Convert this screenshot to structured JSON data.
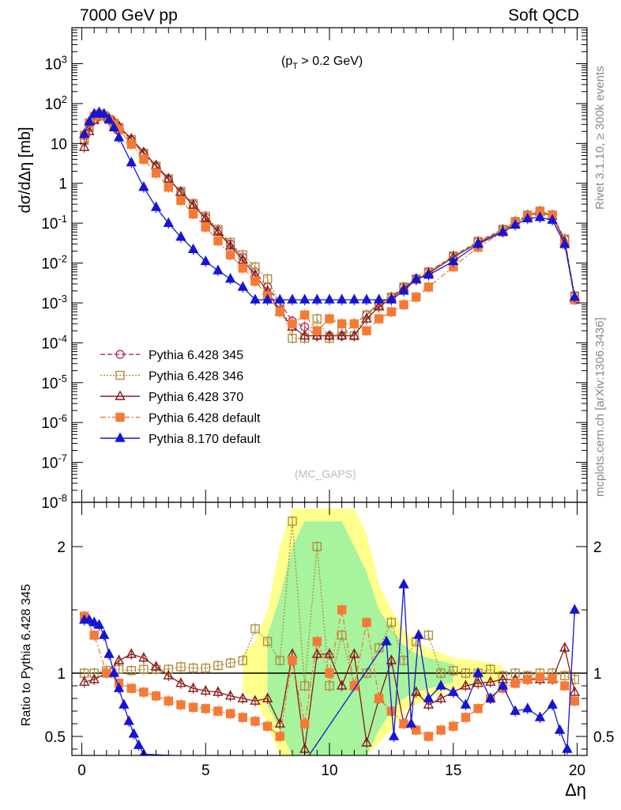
{
  "header": {
    "left_title": "7000 GeV pp",
    "right_title": "Soft QCD"
  },
  "side_labels": {
    "rivet": "Rivet 3.1.10, ≥ 300k events",
    "mcplots": "mcplots.cern.ch [arXiv:1306.3436]"
  },
  "watermark": "(MC_GAPS)",
  "chart_data": [
    {
      "type": "line",
      "role": "main",
      "annotation": "(p_T > 0.2 GeV)",
      "ylabel": "dσ/dΔη [mb]",
      "yscale": "log",
      "ylim": [
        1e-08,
        8000
      ],
      "xlim": [
        -0.4,
        20.4
      ],
      "y_tick_labels": [
        "10^{-8}",
        "10^{-7}",
        "10^{-6}",
        "10^{-5}",
        "10^{-4}",
        "10^{-3}",
        "10^{-2}",
        "10^{-1}",
        "1",
        "10",
        "10^{2}",
        "10^{3}"
      ],
      "legend_position": "lower-left",
      "grid": false,
      "series": [
        {
          "name": "Pythia 6.428 345",
          "color": "#b2385d",
          "marker": "open-circle",
          "line": "dashed",
          "x": [
            0.1,
            0.3,
            0.5,
            0.7,
            0.9,
            1.1,
            1.3,
            1.5,
            2.0,
            2.5,
            3.0,
            3.5,
            4.0,
            4.5,
            5.0,
            5.5,
            6.0,
            6.5,
            7.0,
            7.5,
            8.0,
            8.5,
            9.0,
            9.5,
            10.0,
            10.5,
            11.0,
            11.5,
            12.0,
            12.5,
            13.0,
            13.5,
            14.0,
            15.0,
            16.0,
            17.0,
            17.5,
            18.0,
            18.5,
            19.0,
            19.5,
            19.9
          ],
          "y": [
            12,
            25,
            40,
            50,
            48,
            40,
            32,
            25,
            12,
            5.5,
            2.6,
            1.25,
            0.6,
            0.3,
            0.14,
            0.065,
            0.03,
            0.014,
            0.006,
            0.0025,
            0.001,
            0.00035,
            0.00025,
            0.00015,
            0.00015,
            0.00015,
            0.0003,
            0.0005,
            0.001,
            0.0014,
            0.0025,
            0.004,
            0.006,
            0.015,
            0.035,
            0.07,
            0.11,
            0.16,
            0.2,
            0.16,
            0.04,
            0.0015
          ]
        },
        {
          "name": "Pythia 6.428 346",
          "color": "#b08d3c",
          "marker": "open-square",
          "line": "dotted",
          "x": [
            0.1,
            0.3,
            0.5,
            0.7,
            0.9,
            1.1,
            1.3,
            1.5,
            2.0,
            2.5,
            3.0,
            3.5,
            4.0,
            4.5,
            5.0,
            5.5,
            6.0,
            6.5,
            7.0,
            7.5,
            8.0,
            8.5,
            9.0,
            9.5,
            10.0,
            10.5,
            11.0,
            11.5,
            12.0,
            12.5,
            13.0,
            13.5,
            14.0,
            15.0,
            16.0,
            17.0,
            17.5,
            18.0,
            18.5,
            19.0,
            19.5,
            19.9
          ],
          "y": [
            12,
            25,
            40,
            50,
            48,
            40,
            32,
            25,
            12.5,
            5.7,
            2.7,
            1.3,
            0.63,
            0.31,
            0.15,
            0.07,
            0.033,
            0.016,
            0.008,
            0.004,
            0.0009,
            0.00013,
            0.00013,
            0.0004,
            0.00013,
            0.0002,
            0.00015,
            0.0005,
            0.0009,
            0.0014,
            0.0025,
            0.004,
            0.006,
            0.015,
            0.035,
            0.07,
            0.11,
            0.16,
            0.2,
            0.16,
            0.04,
            0.0015
          ]
        },
        {
          "name": "Pythia 6.428 370",
          "color": "#8b1a1a",
          "marker": "open-triangle",
          "line": "solid",
          "x": [
            0.1,
            0.3,
            0.5,
            0.7,
            0.9,
            1.1,
            1.3,
            1.5,
            2.0,
            2.5,
            3.0,
            3.5,
            4.0,
            4.5,
            5.0,
            5.5,
            6.0,
            6.5,
            7.0,
            7.5,
            8.0,
            8.5,
            9.0,
            9.5,
            10.0,
            10.5,
            11.0,
            11.5,
            12.0,
            12.5,
            13.0,
            13.5,
            14.0,
            15.0,
            16.0,
            17.0,
            17.5,
            18.0,
            18.5,
            19.0,
            19.5,
            19.9
          ],
          "y": [
            8,
            20,
            38,
            50,
            50,
            43,
            35,
            27,
            13,
            6,
            2.8,
            1.3,
            0.6,
            0.28,
            0.13,
            0.06,
            0.027,
            0.012,
            0.005,
            0.002,
            0.0006,
            0.00025,
            0.00015,
            0.00015,
            0.00015,
            0.00015,
            0.00015,
            0.0004,
            0.0008,
            0.0013,
            0.0023,
            0.0038,
            0.0055,
            0.014,
            0.032,
            0.065,
            0.1,
            0.15,
            0.19,
            0.15,
            0.035,
            0.0013
          ]
        },
        {
          "name": "Pythia 6.428 default",
          "color": "#f47a36",
          "marker": "filled-square",
          "line": "dashdot",
          "x": [
            0.1,
            0.3,
            0.5,
            0.7,
            0.9,
            1.1,
            1.3,
            1.5,
            2.0,
            2.5,
            3.0,
            3.5,
            4.0,
            4.5,
            5.0,
            5.5,
            6.0,
            6.5,
            7.0,
            7.5,
            8.0,
            8.5,
            9.0,
            9.5,
            10.0,
            10.5,
            11.0,
            11.5,
            12.0,
            12.5,
            13.0,
            13.5,
            14.0,
            15.0,
            16.0,
            17.0,
            17.5,
            18.0,
            18.5,
            19.0,
            19.5,
            19.9
          ],
          "y": [
            16,
            33,
            48,
            55,
            50,
            40,
            30,
            22,
            9.5,
            4.0,
            1.8,
            0.8,
            0.37,
            0.17,
            0.08,
            0.036,
            0.016,
            0.0075,
            0.0035,
            0.0015,
            0.0006,
            0.0003,
            0.0005,
            0.0002,
            0.0004,
            0.0003,
            0.0003,
            0.0002,
            0.0004,
            0.0006,
            0.0009,
            0.0014,
            0.0025,
            0.008,
            0.025,
            0.06,
            0.1,
            0.15,
            0.19,
            0.16,
            0.03,
            0.0012
          ]
        },
        {
          "name": "Pythia 8.170 default",
          "color": "#1515d6",
          "marker": "filled-triangle",
          "line": "solid",
          "x": [
            0.1,
            0.3,
            0.5,
            0.7,
            0.9,
            1.1,
            1.3,
            1.5,
            2.0,
            2.5,
            3.0,
            3.5,
            4.0,
            4.5,
            5.0,
            5.5,
            6.0,
            6.5,
            7.0,
            7.5,
            8.0,
            8.5,
            9.0,
            9.5,
            10.0,
            10.5,
            11.0,
            11.5,
            12.0,
            12.5,
            13.0,
            13.5,
            14.0,
            15.0,
            16.0,
            17.0,
            17.5,
            18.0,
            18.5,
            19.0,
            19.5,
            19.9
          ],
          "y": [
            17,
            35,
            55,
            60,
            55,
            40,
            25,
            14,
            3.3,
            0.8,
            0.25,
            0.1,
            0.045,
            0.022,
            0.011,
            0.0065,
            0.004,
            0.0025,
            0.0012,
            0.0012,
            0.0012,
            0.0012,
            0.0012,
            0.0012,
            0.0012,
            0.0012,
            0.0012,
            0.0012,
            0.0012,
            0.0012,
            0.002,
            0.004,
            0.005,
            0.011,
            0.03,
            0.06,
            0.09,
            0.13,
            0.14,
            0.12,
            0.03,
            0.0014
          ]
        }
      ]
    },
    {
      "type": "line",
      "role": "ratio",
      "ylabel": "Ratio to Pythia 6.428 345",
      "xlabel": "Δη",
      "ylim": [
        0.35,
        2.35
      ],
      "xlim": [
        -0.4,
        20.4
      ],
      "x_tick_labels": [
        "0",
        "5",
        "10",
        "15",
        "20"
      ],
      "y_tick_labels": [
        "0.5",
        "1",
        "2"
      ],
      "reference_line": 1,
      "bands": [
        {
          "color": "#ffff80",
          "x": [
            6.5,
            7.0,
            7.5,
            8.0,
            8.5,
            9.0,
            9.5,
            10.0,
            10.5,
            11.0,
            11.5,
            12.0,
            12.5,
            13.0,
            13.5,
            14.0,
            15.0,
            16.0,
            17.0
          ],
          "lo": [
            0.85,
            0.78,
            0.6,
            0.35,
            0.35,
            0.35,
            0.35,
            0.35,
            0.35,
            0.35,
            0.35,
            0.45,
            0.55,
            0.7,
            0.75,
            0.8,
            0.88,
            0.9,
            0.94
          ],
          "hi": [
            1.15,
            1.25,
            1.5,
            2.0,
            2.3,
            2.3,
            2.3,
            2.3,
            2.3,
            2.3,
            2.1,
            1.7,
            1.5,
            1.35,
            1.25,
            1.2,
            1.12,
            1.1,
            1.06
          ]
        },
        {
          "color": "#9ef29e",
          "x": [
            7.5,
            8.0,
            8.5,
            9.0,
            9.5,
            10.0,
            10.5,
            11.0,
            11.5,
            12.0,
            12.5,
            13.0,
            13.5,
            14.0,
            15.0
          ],
          "lo": [
            0.75,
            0.55,
            0.35,
            0.35,
            0.35,
            0.35,
            0.35,
            0.35,
            0.35,
            0.55,
            0.7,
            0.8,
            0.85,
            0.88,
            0.93
          ],
          "hi": [
            1.3,
            1.6,
            2.0,
            2.2,
            2.2,
            2.2,
            2.2,
            2.0,
            1.8,
            1.5,
            1.35,
            1.22,
            1.15,
            1.12,
            1.07
          ]
        }
      ],
      "series": [
        {
          "name": "Pythia 6.428 346",
          "color": "#b08d3c",
          "marker": "open-square",
          "line": "dotted",
          "x": [
            0.1,
            0.5,
            1.0,
            1.5,
            2.0,
            2.5,
            3.0,
            3.5,
            4.0,
            4.5,
            5.0,
            5.5,
            6.0,
            6.5,
            7.0,
            7.5,
            8.0,
            8.5,
            9.0,
            9.5,
            10.0,
            10.5,
            11.0,
            11.5,
            12.0,
            12.5,
            13.0,
            13.5,
            14.0,
            14.5,
            15.0,
            15.5,
            16.0,
            16.5,
            17.0,
            17.5,
            18.0,
            18.5,
            19.0,
            19.5,
            19.9
          ],
          "y": [
            1.0,
            1.0,
            1.02,
            1.03,
            1.02,
            1.03,
            1.03,
            1.03,
            1.05,
            1.04,
            1.04,
            1.06,
            1.08,
            1.1,
            1.35,
            1.25,
            1.1,
            2.2,
            0.9,
            2.0,
            0.9,
            1.3,
            0.9,
            1.0,
            1.2,
            1.4,
            1.1,
            1.25,
            1.3,
            1.0,
            1.02,
            1.0,
            1.0,
            1.03,
            0.98,
            1.0,
            0.98,
            1.0,
            1.0,
            0.98,
            0.95
          ]
        },
        {
          "name": "Pythia 6.428 370",
          "color": "#8b1a1a",
          "marker": "open-triangle",
          "line": "solid",
          "x": [
            0.1,
            0.5,
            1.0,
            1.5,
            2.0,
            2.5,
            3.0,
            3.5,
            4.0,
            4.5,
            5.0,
            5.5,
            6.0,
            6.5,
            7.0,
            7.5,
            8.0,
            8.5,
            9.0,
            9.5,
            10.0,
            10.5,
            11.0,
            11.5,
            12.0,
            12.5,
            13.0,
            13.5,
            14.0,
            14.5,
            15.0,
            15.5,
            16.0,
            16.5,
            17.0,
            17.5,
            18.0,
            18.5,
            19.0,
            19.5,
            19.9
          ],
          "y": [
            0.93,
            0.95,
            1.0,
            1.1,
            1.15,
            1.12,
            1.05,
            0.98,
            0.92,
            0.88,
            0.86,
            0.85,
            0.82,
            0.8,
            0.78,
            0.8,
            0.6,
            1.15,
            0.4,
            1.15,
            1.15,
            0.9,
            1.15,
            0.45,
            0.8,
            1.1,
            0.6,
            0.85,
            0.75,
            0.8,
            0.85,
            0.9,
            0.92,
            0.93,
            0.95,
            0.95,
            0.95,
            0.95,
            0.95,
            1.2,
            0.85
          ]
        },
        {
          "name": "Pythia 6.428 default",
          "color": "#f47a36",
          "marker": "filled-square",
          "line": "dashdot",
          "x": [
            0.1,
            0.5,
            1.0,
            1.5,
            2.0,
            2.5,
            3.0,
            3.5,
            4.0,
            4.5,
            5.0,
            5.5,
            6.0,
            6.5,
            7.0,
            7.5,
            8.0,
            8.5,
            9.0,
            9.5,
            10.0,
            10.5,
            11.0,
            11.5,
            12.0,
            12.5,
            13.0,
            13.5,
            14.0,
            14.5,
            15.0,
            15.5,
            16.0,
            16.5,
            17.0,
            17.5,
            18.0,
            18.5,
            19.0,
            19.5,
            19.9
          ],
          "y": [
            1.45,
            1.3,
            1.0,
            0.92,
            0.88,
            0.85,
            0.82,
            0.78,
            0.75,
            0.73,
            0.72,
            0.7,
            0.68,
            0.65,
            0.62,
            0.58,
            0.5,
            1.1,
            0.6,
            1.25,
            1.0,
            1.5,
            0.9,
            1.4,
            0.8,
            0.7,
            0.6,
            0.55,
            0.5,
            0.55,
            0.58,
            0.65,
            0.72,
            0.8,
            0.88,
            0.92,
            0.95,
            0.97,
            0.96,
            0.9,
            0.78
          ]
        },
        {
          "name": "Pythia 8.170 default",
          "color": "#1515d6",
          "marker": "filled-triangle",
          "line": "solid",
          "x": [
            0.1,
            0.3,
            0.5,
            0.7,
            0.9,
            1.1,
            1.3,
            1.5,
            1.7,
            1.9,
            2.1,
            2.3,
            2.5,
            9.0,
            12.3,
            12.6,
            13.0,
            13.3,
            13.6,
            14.0,
            14.5,
            15.0,
            15.5,
            16.0,
            16.5,
            17.0,
            17.5,
            18.0,
            18.5,
            19.0,
            19.3,
            19.6,
            19.9
          ],
          "y": [
            1.42,
            1.42,
            1.4,
            1.38,
            1.3,
            1.15,
            1.0,
            0.88,
            0.75,
            0.62,
            0.52,
            0.43,
            0.36,
            0.3,
            1.25,
            0.5,
            1.7,
            0.6,
            1.3,
            0.8,
            0.9,
            0.85,
            0.75,
            1.0,
            0.8,
            0.9,
            0.7,
            0.72,
            0.65,
            0.75,
            0.55,
            0.4,
            1.5
          ]
        }
      ]
    }
  ]
}
